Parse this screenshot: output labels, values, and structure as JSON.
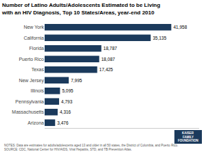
{
  "chart_data": {
    "type": "bar",
    "orientation": "horizontal",
    "title": "Number of Latino Adults/Adolescents Estimated to be Living\nwith an HIV Diagnosis, Top 10 States/Areas, year-end 2010",
    "categories": [
      "New York",
      "California",
      "Florida",
      "Puerto Rico",
      "Texas",
      "New Jersey",
      "Illinois",
      "Pennsylvania",
      "Massachusetts",
      "Arizona"
    ],
    "values": [
      41958,
      35135,
      18787,
      18087,
      17425,
      7995,
      5095,
      4793,
      4316,
      3476
    ],
    "value_labels": [
      "41,958",
      "35,135",
      "18,787",
      "18,087",
      "17,425",
      "7,995",
      "5,095",
      "4,793",
      "4,316",
      "3,476"
    ],
    "data_labels": true,
    "color": "#1b3a5c",
    "xlim": [
      0,
      51188.76
    ],
    "tick_labels": "y",
    "grid": false,
    "annotations": [
      {
        "text": "NOTES: Data are estimates for adults/adolescents aged 13 and older in all 50 states, the District of Columbia, and Puerto Rico.\nSOURCE: CDC, National Center for HIV/AIDS, Viral Hepatitis, STD, and TB Prevention Atlas."
      },
      {
        "text": "KAISER"
      },
      {
        "text": "FAMILY"
      },
      {
        "text": "FOUNDATION"
      }
    ]
  }
}
